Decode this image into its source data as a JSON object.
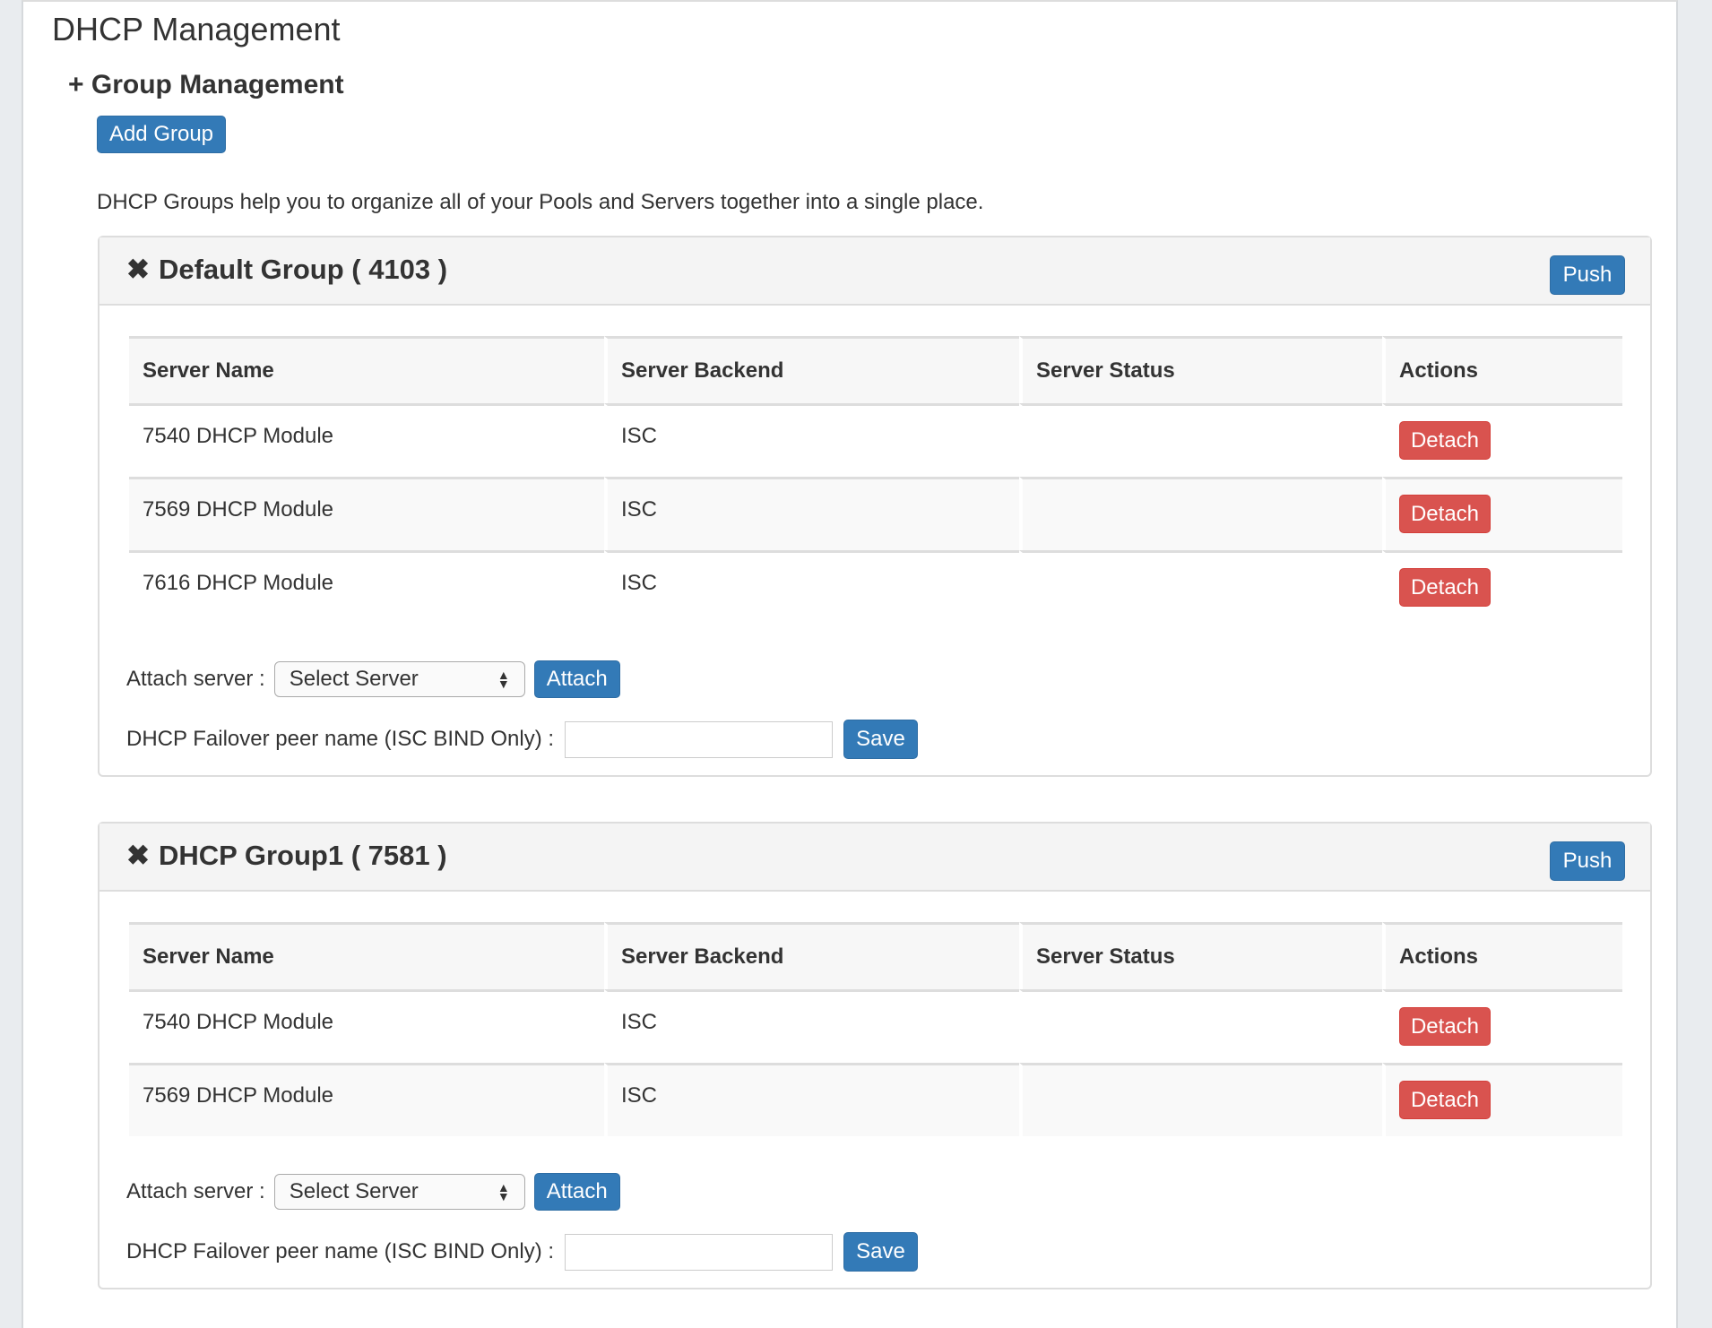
{
  "page": {
    "title": "DHCP Management",
    "section": "Group Management",
    "section_icon": "plus-icon",
    "add_group": "Add Group",
    "description": "DHCP Groups help you to organize all of your Pools and Servers together into a single place."
  },
  "columns": [
    "Server Name",
    "Server Backend",
    "Server Status",
    "Actions"
  ],
  "labels": {
    "push": "Push",
    "detach": "Detach",
    "attach_server": "Attach server :",
    "select_server": "Select Server",
    "attach": "Attach",
    "failover": "DHCP Failover peer name (ISC BIND Only) :",
    "save": "Save",
    "failover_value": ""
  },
  "colors": {
    "primary": "#337ab7",
    "danger": "#d9534f"
  },
  "groups": [
    {
      "title": "Default Group ( 4103 )",
      "rows": [
        [
          "7540 DHCP Module",
          "ISC",
          ""
        ],
        [
          "7569 DHCP Module",
          "ISC",
          ""
        ],
        [
          "7616 DHCP Module",
          "ISC",
          ""
        ]
      ]
    },
    {
      "title": "DHCP Group1 ( 7581 )",
      "rows": [
        [
          "7540 DHCP Module",
          "ISC",
          ""
        ],
        [
          "7569 DHCP Module",
          "ISC",
          ""
        ]
      ]
    }
  ]
}
